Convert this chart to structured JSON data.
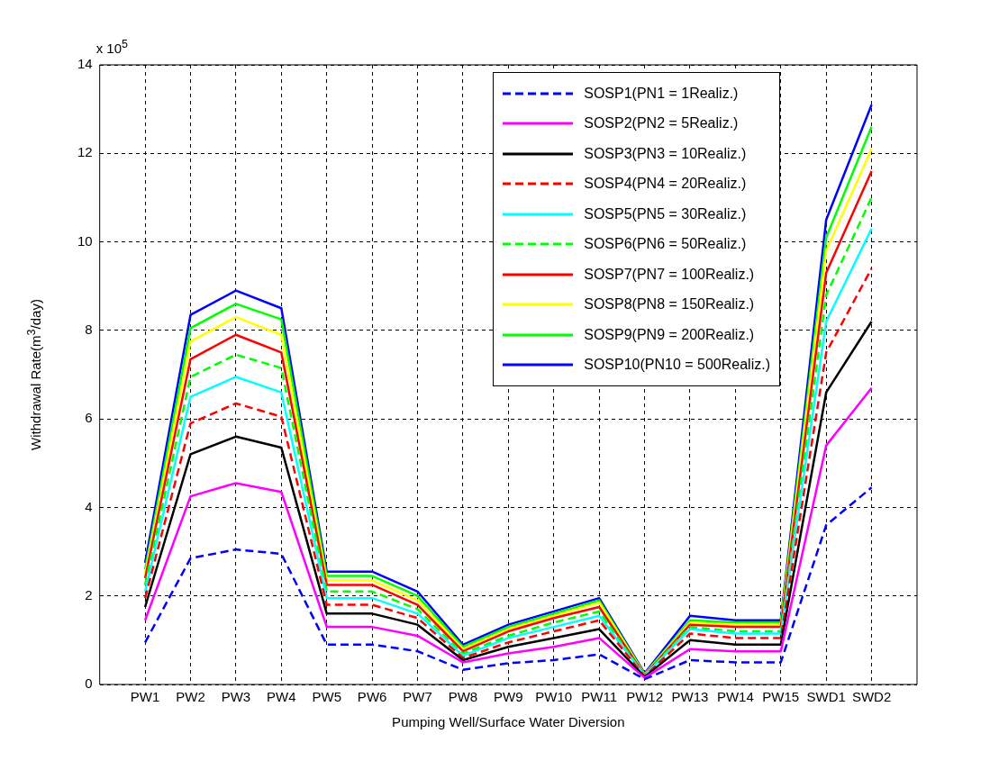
{
  "chart_data": {
    "type": "line",
    "xlabel": "Pumping Well/Surface Water Diversion",
    "ylabel": "Withdrawal Rate(m$^{3}$/day)",
    "annotations": [
      "x 10$^{5}$"
    ],
    "categories": [
      "PW1",
      "PW2",
      "PW3",
      "PW4",
      "PW5",
      "PW6",
      "PW7",
      "PW8",
      "PW9",
      "PW10",
      "PW11",
      "PW12",
      "PW13",
      "PW14",
      "PW15",
      "SWD1",
      "SWD2"
    ],
    "ylim": [
      0,
      14
    ],
    "yticks": [
      0,
      2,
      4,
      6,
      8,
      10,
      12,
      14
    ],
    "grid": true,
    "legend": "top right",
    "marker": "none",
    "series": [
      {
        "name": "SOSP1(PN1 = 1Realiz.)",
        "color": "#0000ff",
        "line_style": "dashed",
        "values": [
          0.95,
          2.85,
          3.05,
          2.95,
          0.9,
          0.9,
          0.75,
          0.33,
          0.48,
          0.55,
          0.68,
          0.12,
          0.55,
          0.5,
          0.5,
          3.6,
          4.45
        ]
      },
      {
        "name": "SOSP2(PN2 = 5Realiz.)",
        "color": "#ff00ff",
        "line_style": "solid",
        "values": [
          1.45,
          4.25,
          4.55,
          4.35,
          1.3,
          1.3,
          1.1,
          0.5,
          0.7,
          0.85,
          1.05,
          0.15,
          0.8,
          0.75,
          0.75,
          5.4,
          6.7
        ]
      },
      {
        "name": "SOSP3(PN3 = 10Realiz.)",
        "color": "#000000",
        "line_style": "solid",
        "values": [
          1.75,
          5.2,
          5.6,
          5.35,
          1.6,
          1.6,
          1.35,
          0.55,
          0.85,
          1.05,
          1.25,
          0.17,
          1.0,
          0.9,
          0.9,
          6.6,
          8.2
        ]
      },
      {
        "name": "SOSP4(PN4 = 20Realiz.)",
        "color": "#ff0000",
        "line_style": "dashed",
        "values": [
          1.95,
          5.9,
          6.35,
          6.05,
          1.8,
          1.8,
          1.5,
          0.6,
          0.95,
          1.2,
          1.45,
          0.18,
          1.15,
          1.05,
          1.05,
          7.5,
          9.4
        ]
      },
      {
        "name": "SOSP5(PN5 = 30Realiz.)",
        "color": "#00ffff",
        "line_style": "solid",
        "values": [
          2.1,
          6.5,
          6.95,
          6.6,
          1.95,
          1.95,
          1.6,
          0.65,
          1.05,
          1.3,
          1.55,
          0.2,
          1.25,
          1.15,
          1.15,
          8.2,
          10.3
        ]
      },
      {
        "name": "SOSP6(PN6 = 50Realiz.)",
        "color": "#00ff00",
        "line_style": "dashed",
        "values": [
          2.25,
          6.95,
          7.45,
          7.15,
          2.1,
          2.1,
          1.7,
          0.7,
          1.1,
          1.4,
          1.65,
          0.2,
          1.3,
          1.2,
          1.2,
          8.8,
          11.0
        ]
      },
      {
        "name": "SOSP7(PN7 = 100Realiz.)",
        "color": "#ff0000",
        "line_style": "solid",
        "values": [
          2.4,
          7.35,
          7.9,
          7.5,
          2.25,
          2.25,
          1.8,
          0.75,
          1.2,
          1.5,
          1.75,
          0.21,
          1.35,
          1.3,
          1.3,
          9.3,
          11.6
        ]
      },
      {
        "name": "SOSP8(PN8 = 150Realiz.)",
        "color": "#ffff00",
        "line_style": "solid",
        "values": [
          2.5,
          7.75,
          8.3,
          7.9,
          2.35,
          2.35,
          1.9,
          0.8,
          1.25,
          1.55,
          1.85,
          0.22,
          1.4,
          1.35,
          1.35,
          9.8,
          12.1
        ]
      },
      {
        "name": "SOSP9(PN9 = 200Realiz.)",
        "color": "#00ff00",
        "line_style": "solid",
        "values": [
          2.6,
          8.05,
          8.6,
          8.25,
          2.45,
          2.45,
          2.0,
          0.85,
          1.3,
          1.6,
          1.9,
          0.23,
          1.45,
          1.4,
          1.4,
          10.1,
          12.6
        ]
      },
      {
        "name": "SOSP10(PN10 = 500Realiz.)",
        "color": "#0000ff",
        "line_style": "solid",
        "values": [
          2.75,
          8.35,
          8.9,
          8.5,
          2.55,
          2.55,
          2.1,
          0.9,
          1.35,
          1.65,
          1.95,
          0.25,
          1.55,
          1.45,
          1.45,
          10.5,
          13.1
        ]
      }
    ]
  }
}
